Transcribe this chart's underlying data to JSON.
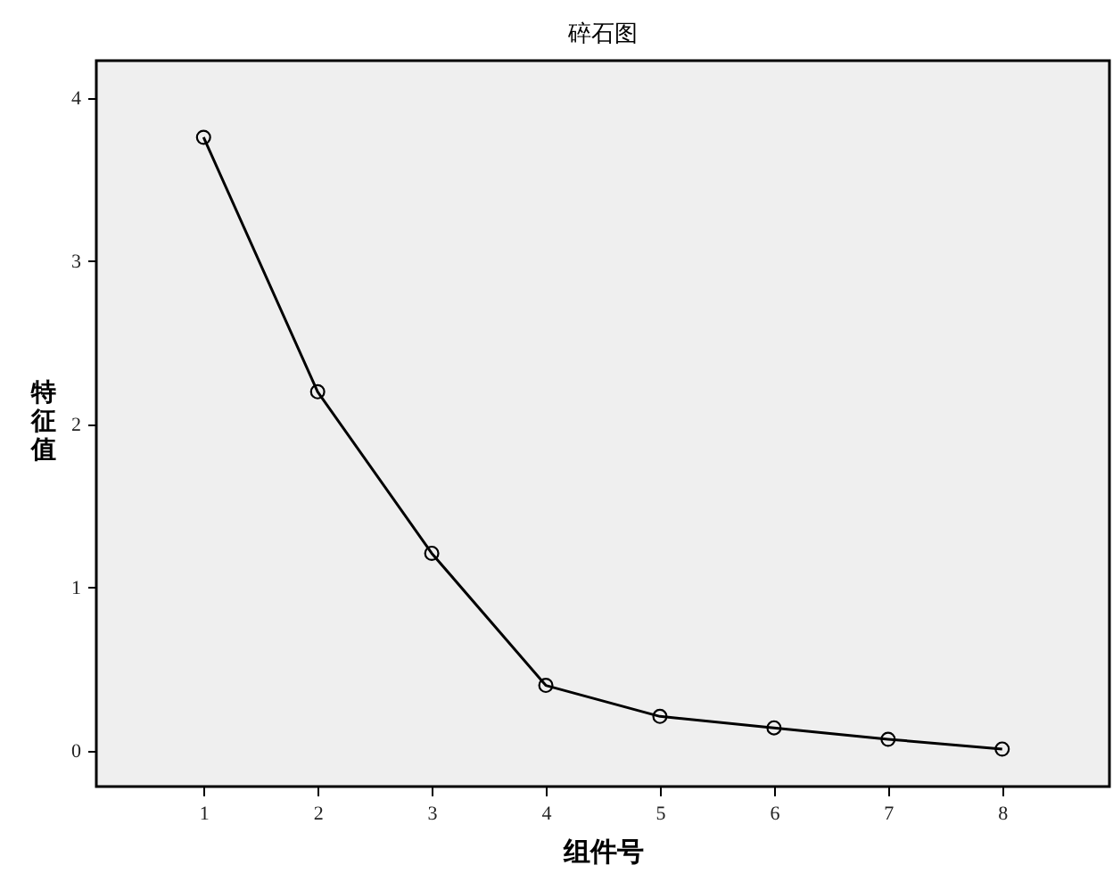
{
  "chart_data": {
    "type": "line",
    "title": "碎石图",
    "xlabel": "组件号",
    "ylabel": "特征值",
    "x": [
      1,
      2,
      3,
      4,
      5,
      6,
      7,
      8
    ],
    "values": [
      3.76,
      2.2,
      1.21,
      0.4,
      0.21,
      0.14,
      0.07,
      0.01
    ],
    "color": "#000000",
    "marker": "circle",
    "xlim": [
      0.06,
      8.94
    ],
    "xticks": [
      1,
      2,
      3,
      4,
      5,
      6,
      7,
      8
    ],
    "ylim": [
      -0.22,
      4.23
    ],
    "yticks": [
      0,
      1,
      2,
      3,
      4
    ]
  }
}
